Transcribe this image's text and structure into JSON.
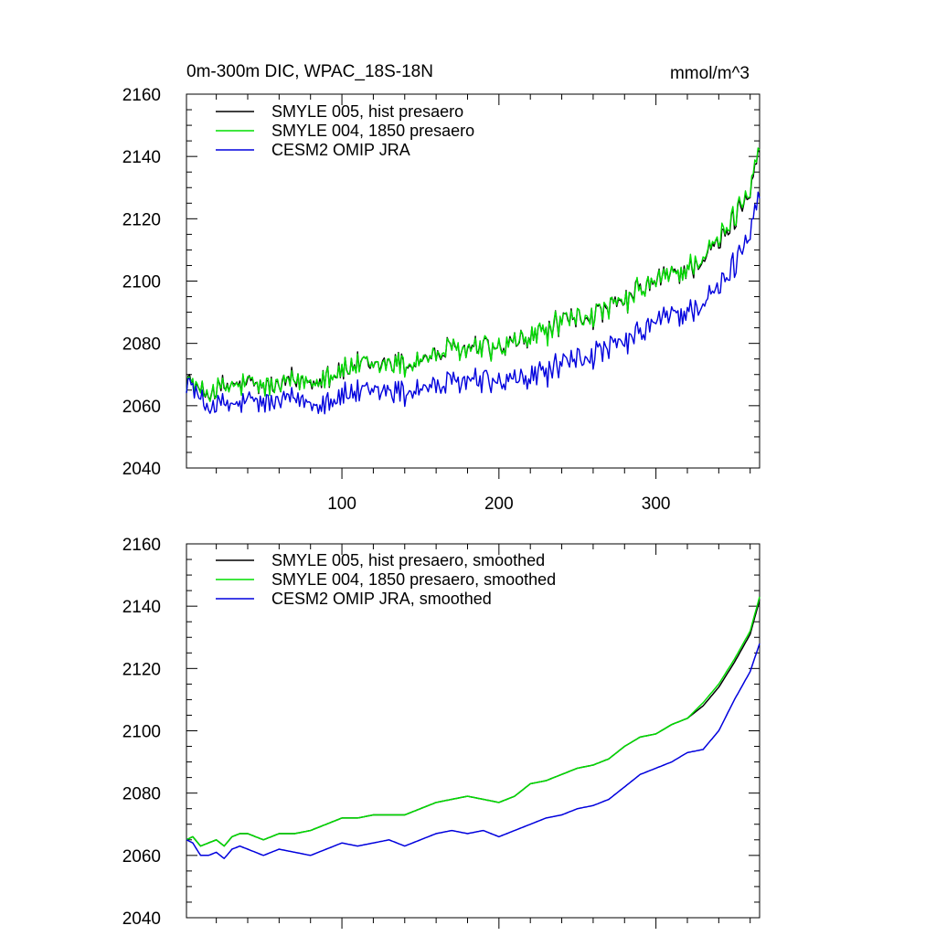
{
  "colors": {
    "black": "#000000",
    "green": "#00dd00",
    "blue": "#0000dd"
  },
  "chart_data": [
    {
      "type": "line",
      "title_left": "0m-300m DIC, WPAC_18S-18N",
      "title_right": "mmol/m^3",
      "xlim": [
        1,
        366
      ],
      "ylim": [
        2040,
        2160
      ],
      "yticks": [
        2040,
        2060,
        2080,
        2100,
        2120,
        2140,
        2160
      ],
      "ytick_labels": [
        "2040",
        "2060",
        "2080",
        "2100",
        "2120",
        "2140",
        "2160"
      ],
      "xticks": [
        100,
        200,
        300
      ],
      "xtick_labels": [
        "100",
        "200",
        "300"
      ],
      "show_xtick_labels": true,
      "noise": true,
      "series": [
        {
          "name": "SMYLE 005, hist presaero",
          "color": "black",
          "x": [
            1,
            10,
            20,
            30,
            40,
            50,
            60,
            70,
            80,
            90,
            100,
            110,
            120,
            130,
            140,
            150,
            160,
            170,
            180,
            190,
            200,
            210,
            220,
            230,
            240,
            250,
            260,
            270,
            280,
            290,
            300,
            310,
            320,
            330,
            340,
            350,
            360,
            366
          ],
          "y": [
            2069,
            2064,
            2065,
            2066,
            2067,
            2066,
            2066,
            2068,
            2068,
            2070,
            2071,
            2073,
            2072,
            2074,
            2073,
            2075,
            2076,
            2078,
            2078,
            2079,
            2078,
            2080,
            2082,
            2084,
            2087,
            2088,
            2089,
            2091,
            2093,
            2097,
            2100,
            2102,
            2104,
            2107,
            2112,
            2120,
            2130,
            2144
          ]
        },
        {
          "name": "SMYLE 004, 1850 presaero",
          "color": "green",
          "x": [
            1,
            10,
            20,
            30,
            40,
            50,
            60,
            70,
            80,
            90,
            100,
            110,
            120,
            130,
            140,
            150,
            160,
            170,
            180,
            190,
            200,
            210,
            220,
            230,
            240,
            250,
            260,
            270,
            280,
            290,
            300,
            310,
            320,
            330,
            340,
            350,
            360,
            366
          ],
          "y": [
            2069,
            2064,
            2065,
            2066,
            2067,
            2066,
            2066,
            2068,
            2068,
            2070,
            2071,
            2073,
            2072,
            2074,
            2073,
            2075,
            2076,
            2078,
            2078,
            2079,
            2078,
            2080,
            2082,
            2084,
            2087,
            2088,
            2089,
            2091,
            2093,
            2097,
            2100,
            2102,
            2104,
            2108,
            2113,
            2121,
            2131,
            2145
          ]
        },
        {
          "name": "CESM2 OMIP JRA",
          "color": "blue",
          "x": [
            1,
            10,
            20,
            30,
            40,
            50,
            60,
            70,
            80,
            90,
            100,
            110,
            120,
            130,
            140,
            150,
            160,
            170,
            180,
            190,
            200,
            210,
            220,
            230,
            240,
            250,
            260,
            270,
            280,
            290,
            300,
            310,
            320,
            330,
            340,
            350,
            360,
            366
          ],
          "y": [
            2069,
            2061,
            2060,
            2060,
            2061,
            2061,
            2061,
            2062,
            2061,
            2062,
            2063,
            2064,
            2064,
            2065,
            2064,
            2066,
            2066,
            2067,
            2068,
            2068,
            2067,
            2068,
            2069,
            2071,
            2073,
            2075,
            2076,
            2078,
            2080,
            2083,
            2087,
            2089,
            2090,
            2093,
            2097,
            2105,
            2117,
            2130
          ]
        }
      ]
    },
    {
      "type": "line",
      "title_left": "",
      "title_right": "",
      "xlim": [
        1,
        366
      ],
      "ylim": [
        2040,
        2160
      ],
      "yticks": [
        2040,
        2060,
        2080,
        2100,
        2120,
        2140,
        2160
      ],
      "ytick_labels": [
        "2040",
        "2060",
        "2080",
        "2100",
        "2120",
        "2140",
        "2160"
      ],
      "xticks": [
        100,
        200,
        300
      ],
      "xtick_labels": [],
      "show_xtick_labels": false,
      "noise": false,
      "series": [
        {
          "name": "SMYLE 005, hist presaero, smoothed",
          "color": "black",
          "x": [
            1,
            5,
            10,
            15,
            20,
            25,
            30,
            35,
            40,
            50,
            60,
            70,
            80,
            90,
            100,
            110,
            120,
            130,
            140,
            150,
            160,
            170,
            180,
            190,
            200,
            210,
            220,
            230,
            240,
            250,
            260,
            270,
            280,
            290,
            300,
            310,
            320,
            330,
            340,
            350,
            360,
            366
          ],
          "y": [
            2065,
            2066,
            2063,
            2064,
            2065,
            2063,
            2066,
            2067,
            2067,
            2065,
            2067,
            2067,
            2068,
            2070,
            2072,
            2072,
            2073,
            2073,
            2073,
            2075,
            2077,
            2078,
            2079,
            2078,
            2077,
            2079,
            2083,
            2084,
            2086,
            2088,
            2089,
            2091,
            2095,
            2098,
            2099,
            2102,
            2104,
            2108,
            2114,
            2122,
            2131,
            2142
          ]
        },
        {
          "name": "SMYLE 004, 1850 presaero, smoothed",
          "color": "green",
          "x": [
            1,
            5,
            10,
            15,
            20,
            25,
            30,
            35,
            40,
            50,
            60,
            70,
            80,
            90,
            100,
            110,
            120,
            130,
            140,
            150,
            160,
            170,
            180,
            190,
            200,
            210,
            220,
            230,
            240,
            250,
            260,
            270,
            280,
            290,
            300,
            310,
            320,
            330,
            340,
            350,
            360,
            366
          ],
          "y": [
            2065,
            2066,
            2063,
            2064,
            2065,
            2063,
            2066,
            2067,
            2067,
            2065,
            2067,
            2067,
            2068,
            2070,
            2072,
            2072,
            2073,
            2073,
            2073,
            2075,
            2077,
            2078,
            2079,
            2078,
            2077,
            2079,
            2083,
            2084,
            2086,
            2088,
            2089,
            2091,
            2095,
            2098,
            2099,
            2102,
            2104,
            2109,
            2115,
            2123,
            2132,
            2143
          ]
        },
        {
          "name": "CESM2 OMIP JRA, smoothed",
          "color": "blue",
          "x": [
            1,
            5,
            10,
            15,
            20,
            25,
            30,
            35,
            40,
            50,
            60,
            70,
            80,
            90,
            100,
            110,
            120,
            130,
            140,
            150,
            160,
            170,
            180,
            190,
            200,
            210,
            220,
            230,
            240,
            250,
            260,
            270,
            280,
            290,
            300,
            310,
            320,
            330,
            340,
            350,
            360,
            366
          ],
          "y": [
            2065,
            2064,
            2060,
            2060,
            2061,
            2059,
            2062,
            2063,
            2062,
            2060,
            2062,
            2061,
            2060,
            2062,
            2064,
            2063,
            2064,
            2065,
            2063,
            2065,
            2067,
            2068,
            2067,
            2068,
            2066,
            2068,
            2070,
            2072,
            2073,
            2075,
            2076,
            2078,
            2082,
            2086,
            2088,
            2090,
            2093,
            2094,
            2100,
            2110,
            2119,
            2128
          ]
        }
      ]
    }
  ]
}
